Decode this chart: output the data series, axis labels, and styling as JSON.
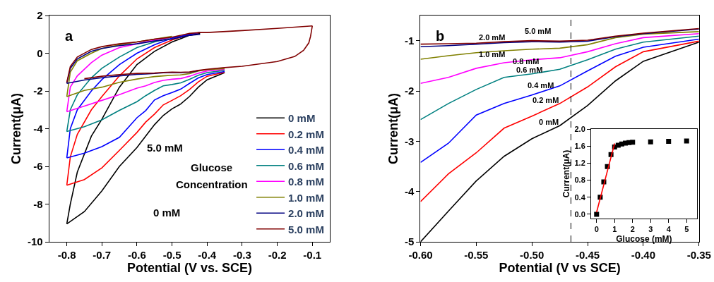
{
  "chart_data": [
    {
      "type": "line",
      "xlabel": "Potential (V vs. SCE)",
      "ylabel": "Current(μA)",
      "xlim": [
        -0.85,
        -0.05
      ],
      "ylim": [
        -10,
        2
      ],
      "xticks": [
        -0.8,
        -0.7,
        -0.6,
        -0.5,
        -0.4,
        -0.3,
        -0.2,
        -0.1
      ],
      "yticks": [
        -10,
        -8,
        -6,
        -4,
        -2,
        0,
        2
      ],
      "legend": "bottom right",
      "annotations": [
        "a",
        "5.0 mM",
        "Glucose",
        "Concentration",
        "0 mM"
      ],
      "series": [
        {
          "name": "0 mM",
          "color": "#000000",
          "x": [
            -0.8,
            -0.79,
            -0.77,
            -0.73,
            -0.7,
            -0.65,
            -0.6,
            -0.55,
            -0.5,
            -0.45,
            -0.42
          ],
          "values": [
            -9.05,
            -8.0,
            -6.3,
            -4.4,
            -3.5,
            -1.8,
            -0.6,
            0.1,
            0.6,
            0.95,
            1.05
          ]
        },
        {
          "color": "#000000",
          "x": [
            -0.35,
            -0.4,
            -0.425,
            -0.45,
            -0.475,
            -0.5,
            -0.525,
            -0.55,
            -0.575,
            -0.6,
            -0.65,
            -0.7,
            -0.75,
            -0.8
          ],
          "values": [
            -1.03,
            -1.41,
            -1.8,
            -2.29,
            -2.69,
            -2.95,
            -3.3,
            -3.79,
            -4.39,
            -5.0,
            -6.0,
            -7.3,
            -8.4,
            -9.05
          ]
        },
        {
          "name": "0.2 mM",
          "color": "#ff0000",
          "x": [
            -0.8,
            -0.79,
            -0.77,
            -0.73,
            -0.7,
            -0.65,
            -0.6,
            -0.55,
            -0.5,
            -0.45,
            -0.42
          ],
          "values": [
            -7.0,
            -5.5,
            -4.3,
            -3.0,
            -2.3,
            -1.2,
            -0.3,
            0.3,
            0.7,
            1.0,
            1.1
          ]
        },
        {
          "color": "#ff0000",
          "x": [
            -0.35,
            -0.4,
            -0.425,
            -0.45,
            -0.475,
            -0.5,
            -0.525,
            -0.55,
            -0.575,
            -0.6,
            -0.65,
            -0.7,
            -0.75,
            -0.8
          ],
          "values": [
            -1.01,
            -1.22,
            -1.52,
            -1.92,
            -2.25,
            -2.5,
            -2.74,
            -3.23,
            -3.65,
            -4.2,
            -5.15,
            -6.08,
            -6.7,
            -7.0
          ]
        },
        {
          "name": "0.4 mM",
          "color": "#0000ff",
          "x": [
            -0.8,
            -0.79,
            -0.77,
            -0.73,
            -0.7,
            -0.65,
            -0.6,
            -0.55,
            -0.5,
            -0.45,
            -0.42
          ],
          "values": [
            -5.55,
            -4.0,
            -3.0,
            -2.0,
            -1.4,
            -0.6,
            0.0,
            0.45,
            0.8,
            1.0,
            1.1
          ]
        },
        {
          "color": "#0000ff",
          "x": [
            -0.35,
            -0.4,
            -0.425,
            -0.45,
            -0.475,
            -0.5,
            -0.525,
            -0.55,
            -0.575,
            -0.6,
            -0.65,
            -0.7,
            -0.75,
            -0.8
          ],
          "values": [
            -0.97,
            -1.13,
            -1.31,
            -1.6,
            -1.9,
            -2.08,
            -2.25,
            -2.48,
            -3.04,
            -3.42,
            -4.46,
            -4.95,
            -5.3,
            -5.55
          ]
        },
        {
          "name": "0.6 mM",
          "color": "#008080",
          "x": [
            -0.8,
            -0.79,
            -0.77,
            -0.73,
            -0.7,
            -0.65,
            -0.6,
            -0.55,
            -0.5
          ],
          "values": [
            -4.15,
            -3.0,
            -2.2,
            -1.3,
            -0.8,
            -0.2,
            0.3,
            0.6,
            0.85
          ]
        },
        {
          "color": "#008080",
          "x": [
            -0.35,
            -0.4,
            -0.425,
            -0.45,
            -0.475,
            -0.5,
            -0.525,
            -0.55,
            -0.575,
            -0.6,
            -0.65,
            -0.7,
            -0.75,
            -0.8
          ],
          "values": [
            -0.91,
            -1.03,
            -1.17,
            -1.38,
            -1.57,
            -1.66,
            -1.73,
            -1.97,
            -2.25,
            -2.57,
            -3.03,
            -3.53,
            -3.9,
            -4.15
          ]
        },
        {
          "name": "0.8 mM",
          "color": "#ff00ff",
          "x": [
            -0.8,
            -0.79,
            -0.77,
            -0.73,
            -0.7,
            -0.65,
            -0.6,
            -0.55,
            -0.5
          ],
          "values": [
            -3.1,
            -1.8,
            -1.2,
            -0.5,
            -0.1,
            0.3,
            0.5,
            0.7,
            0.85
          ]
        },
        {
          "color": "#ff00ff",
          "x": [
            -0.35,
            -0.4,
            -0.425,
            -0.45,
            -0.475,
            -0.5,
            -0.525,
            -0.55,
            -0.575,
            -0.6,
            -0.65,
            -0.7,
            -0.75,
            -0.8
          ],
          "values": [
            -0.86,
            -0.94,
            -1.06,
            -1.22,
            -1.34,
            -1.38,
            -1.44,
            -1.55,
            -1.73,
            -1.85,
            -2.2,
            -2.5,
            -2.8,
            -3.1
          ]
        },
        {
          "name": "1.0 mM",
          "color": "#808000",
          "x": [
            -0.8,
            -0.79,
            -0.77,
            -0.73,
            -0.7,
            -0.65,
            -0.6,
            -0.55,
            -0.5
          ],
          "values": [
            -2.3,
            -1.0,
            -0.4,
            0.0,
            0.25,
            0.45,
            0.6,
            0.75,
            0.9
          ]
        },
        {
          "color": "#808000",
          "x": [
            -0.35,
            -0.4,
            -0.425,
            -0.45,
            -0.475,
            -0.5,
            -0.525,
            -0.55,
            -0.575,
            -0.6,
            -0.65,
            -0.7,
            -0.75,
            -0.8
          ],
          "values": [
            -0.82,
            -0.87,
            -0.94,
            -1.08,
            -1.15,
            -1.17,
            -1.2,
            -1.24,
            -1.3,
            -1.37,
            -1.54,
            -1.8,
            -1.97,
            -2.3
          ]
        },
        {
          "name": "2.0 mM",
          "color": "#000080",
          "x": [
            -0.8,
            -0.79,
            -0.77,
            -0.73,
            -0.7,
            -0.65,
            -0.6,
            -0.55,
            -0.5,
            -0.45,
            -0.42
          ],
          "values": [
            -1.6,
            -0.8,
            -0.3,
            0.1,
            0.25,
            0.4,
            0.5,
            0.65,
            0.75,
            0.95,
            1.0
          ]
        },
        {
          "color": "#000080",
          "x": [
            -0.425,
            -0.45,
            -0.475,
            -0.5,
            -0.525,
            -0.55,
            -0.575,
            -0.6,
            -0.65,
            -0.7,
            -0.75,
            -0.8
          ],
          "values": [
            -0.92,
            -1.01,
            -1.03,
            -1.02,
            -1.04,
            -1.07,
            -1.1,
            -1.12,
            -1.2,
            -1.3,
            -1.42,
            -1.6
          ]
        },
        {
          "name": "5.0 mM",
          "color": "#800000",
          "x": [
            -0.8,
            -0.79,
            -0.77,
            -0.73,
            -0.7,
            -0.65,
            -0.6,
            -0.55,
            -0.5,
            -0.45,
            -0.42,
            -0.4,
            -0.3,
            -0.2,
            -0.1
          ],
          "values": [
            -1.55,
            -0.7,
            -0.2,
            0.2,
            0.35,
            0.5,
            0.6,
            0.75,
            0.85,
            1.05,
            1.1,
            1.1,
            1.2,
            1.32,
            1.45
          ]
        },
        {
          "color": "#800000",
          "x": [
            -0.1,
            -0.105,
            -0.11,
            -0.125,
            -0.15,
            -0.2,
            -0.3,
            -0.35,
            -0.4,
            -0.425,
            -0.45,
            -0.475,
            -0.5,
            -0.525,
            -0.55,
            -0.575,
            -0.6,
            -0.65,
            -0.7,
            -0.75
          ],
          "values": [
            1.45,
            0.9,
            0.55,
            0.15,
            -0.17,
            -0.44,
            -0.69,
            -0.76,
            -0.85,
            -0.91,
            -0.99,
            -1.01,
            -1.0,
            -1.02,
            -1.05,
            -1.06,
            -1.07,
            -1.13,
            -1.22,
            -1.35
          ]
        }
      ]
    },
    {
      "type": "line",
      "xlabel": "Potential (V vs SCE)",
      "ylabel": "Current(μA)",
      "xlim": [
        -0.6,
        -0.35
      ],
      "ylim": [
        -5,
        -0.5
      ],
      "xticks": [
        {
          "value": -0.6,
          "label": "-0.60"
        },
        {
          "value": -0.55,
          "label": "-0.55"
        },
        {
          "value": -0.5,
          "label": "-0.50"
        },
        {
          "value": -0.45,
          "label": "-0.45"
        },
        {
          "value": -0.4,
          "label": "-0.40"
        },
        {
          "value": -0.35,
          "label": "-0.35"
        }
      ],
      "yticks": [
        -5,
        -4,
        -3,
        -2,
        -1
      ],
      "ref_lines": [
        {
          "axis": "x",
          "value": -0.465,
          "color": "#000000",
          "line_style": "dashed"
        }
      ],
      "annotations": [
        "b",
        "0 mM",
        "0.2 mM",
        "0.4 mM",
        "0.6 mM",
        "0.8 mM",
        "1.0 mM",
        "2.0 mM",
        "5.0 mM"
      ],
      "x": [
        -0.6,
        -0.575,
        -0.55,
        -0.525,
        -0.5,
        -0.475,
        -0.45,
        -0.425,
        -0.4,
        -0.35
      ],
      "series": [
        {
          "color": "#000000",
          "values": [
            -5.0,
            -4.39,
            -3.79,
            -3.3,
            -2.95,
            -2.69,
            -2.29,
            -1.8,
            -1.41,
            -1.03
          ]
        },
        {
          "color": "#ff0000",
          "values": [
            -4.2,
            -3.65,
            -3.23,
            -2.74,
            -2.5,
            -2.25,
            -1.92,
            -1.52,
            -1.22,
            -1.01
          ]
        },
        {
          "color": "#0000ff",
          "values": [
            -3.42,
            -3.04,
            -2.48,
            -2.25,
            -2.08,
            -1.9,
            -1.6,
            -1.31,
            -1.13,
            -0.97
          ]
        },
        {
          "color": "#008080",
          "values": [
            -2.57,
            -2.25,
            -1.97,
            -1.73,
            -1.66,
            -1.57,
            -1.38,
            -1.17,
            -1.03,
            -0.91
          ]
        },
        {
          "color": "#ff00ff",
          "values": [
            -1.85,
            -1.73,
            -1.55,
            -1.44,
            -1.38,
            -1.34,
            -1.22,
            -1.06,
            -0.94,
            -0.86
          ]
        },
        {
          "color": "#808000",
          "values": [
            -1.37,
            -1.3,
            -1.24,
            -1.2,
            -1.17,
            -1.15,
            -1.08,
            -0.94,
            -0.87,
            -0.82
          ]
        },
        {
          "color": "#000080",
          "values": [
            -1.12,
            -1.1,
            -1.07,
            -1.04,
            -1.02,
            -1.03,
            -1.01,
            -0.92,
            -0.86,
            -0.77
          ]
        },
        {
          "color": "#800000",
          "values": [
            -1.07,
            -1.06,
            -1.05,
            -1.02,
            -1.0,
            -1.01,
            -0.99,
            -0.91,
            -0.85,
            -0.76
          ]
        }
      ]
    },
    {
      "type": "scatter",
      "xlabel": "Glucose (mM)",
      "ylabel": "Current(μA)",
      "xlim": [
        -0.3,
        5.57
      ],
      "ylim": [
        -0.1,
        2.0
      ],
      "xticks": [
        0,
        1,
        2,
        3,
        4,
        5
      ],
      "yticks": [
        {
          "value": 0,
          "label": "0.0"
        },
        0.4,
        0.8,
        1.2,
        1.6,
        {
          "value": 2,
          "label": "2.0"
        }
      ],
      "series": [
        {
          "type": "scatter",
          "marker": "square",
          "color": "#000000",
          "x": [
            0,
            0.2,
            0.4,
            0.6,
            0.8,
            1.0,
            1.2,
            1.4,
            1.6,
            1.8,
            2,
            3,
            4,
            5
          ],
          "values": [
            0,
            0.4,
            0.76,
            1.12,
            1.4,
            1.58,
            1.62,
            1.65,
            1.67,
            1.68,
            1.69,
            1.7,
            1.71,
            1.72
          ]
        },
        {
          "type": "line",
          "color": "#ff0000",
          "x": [
            0,
            1
          ],
          "values": [
            0.05,
            1.66
          ]
        }
      ]
    }
  ]
}
